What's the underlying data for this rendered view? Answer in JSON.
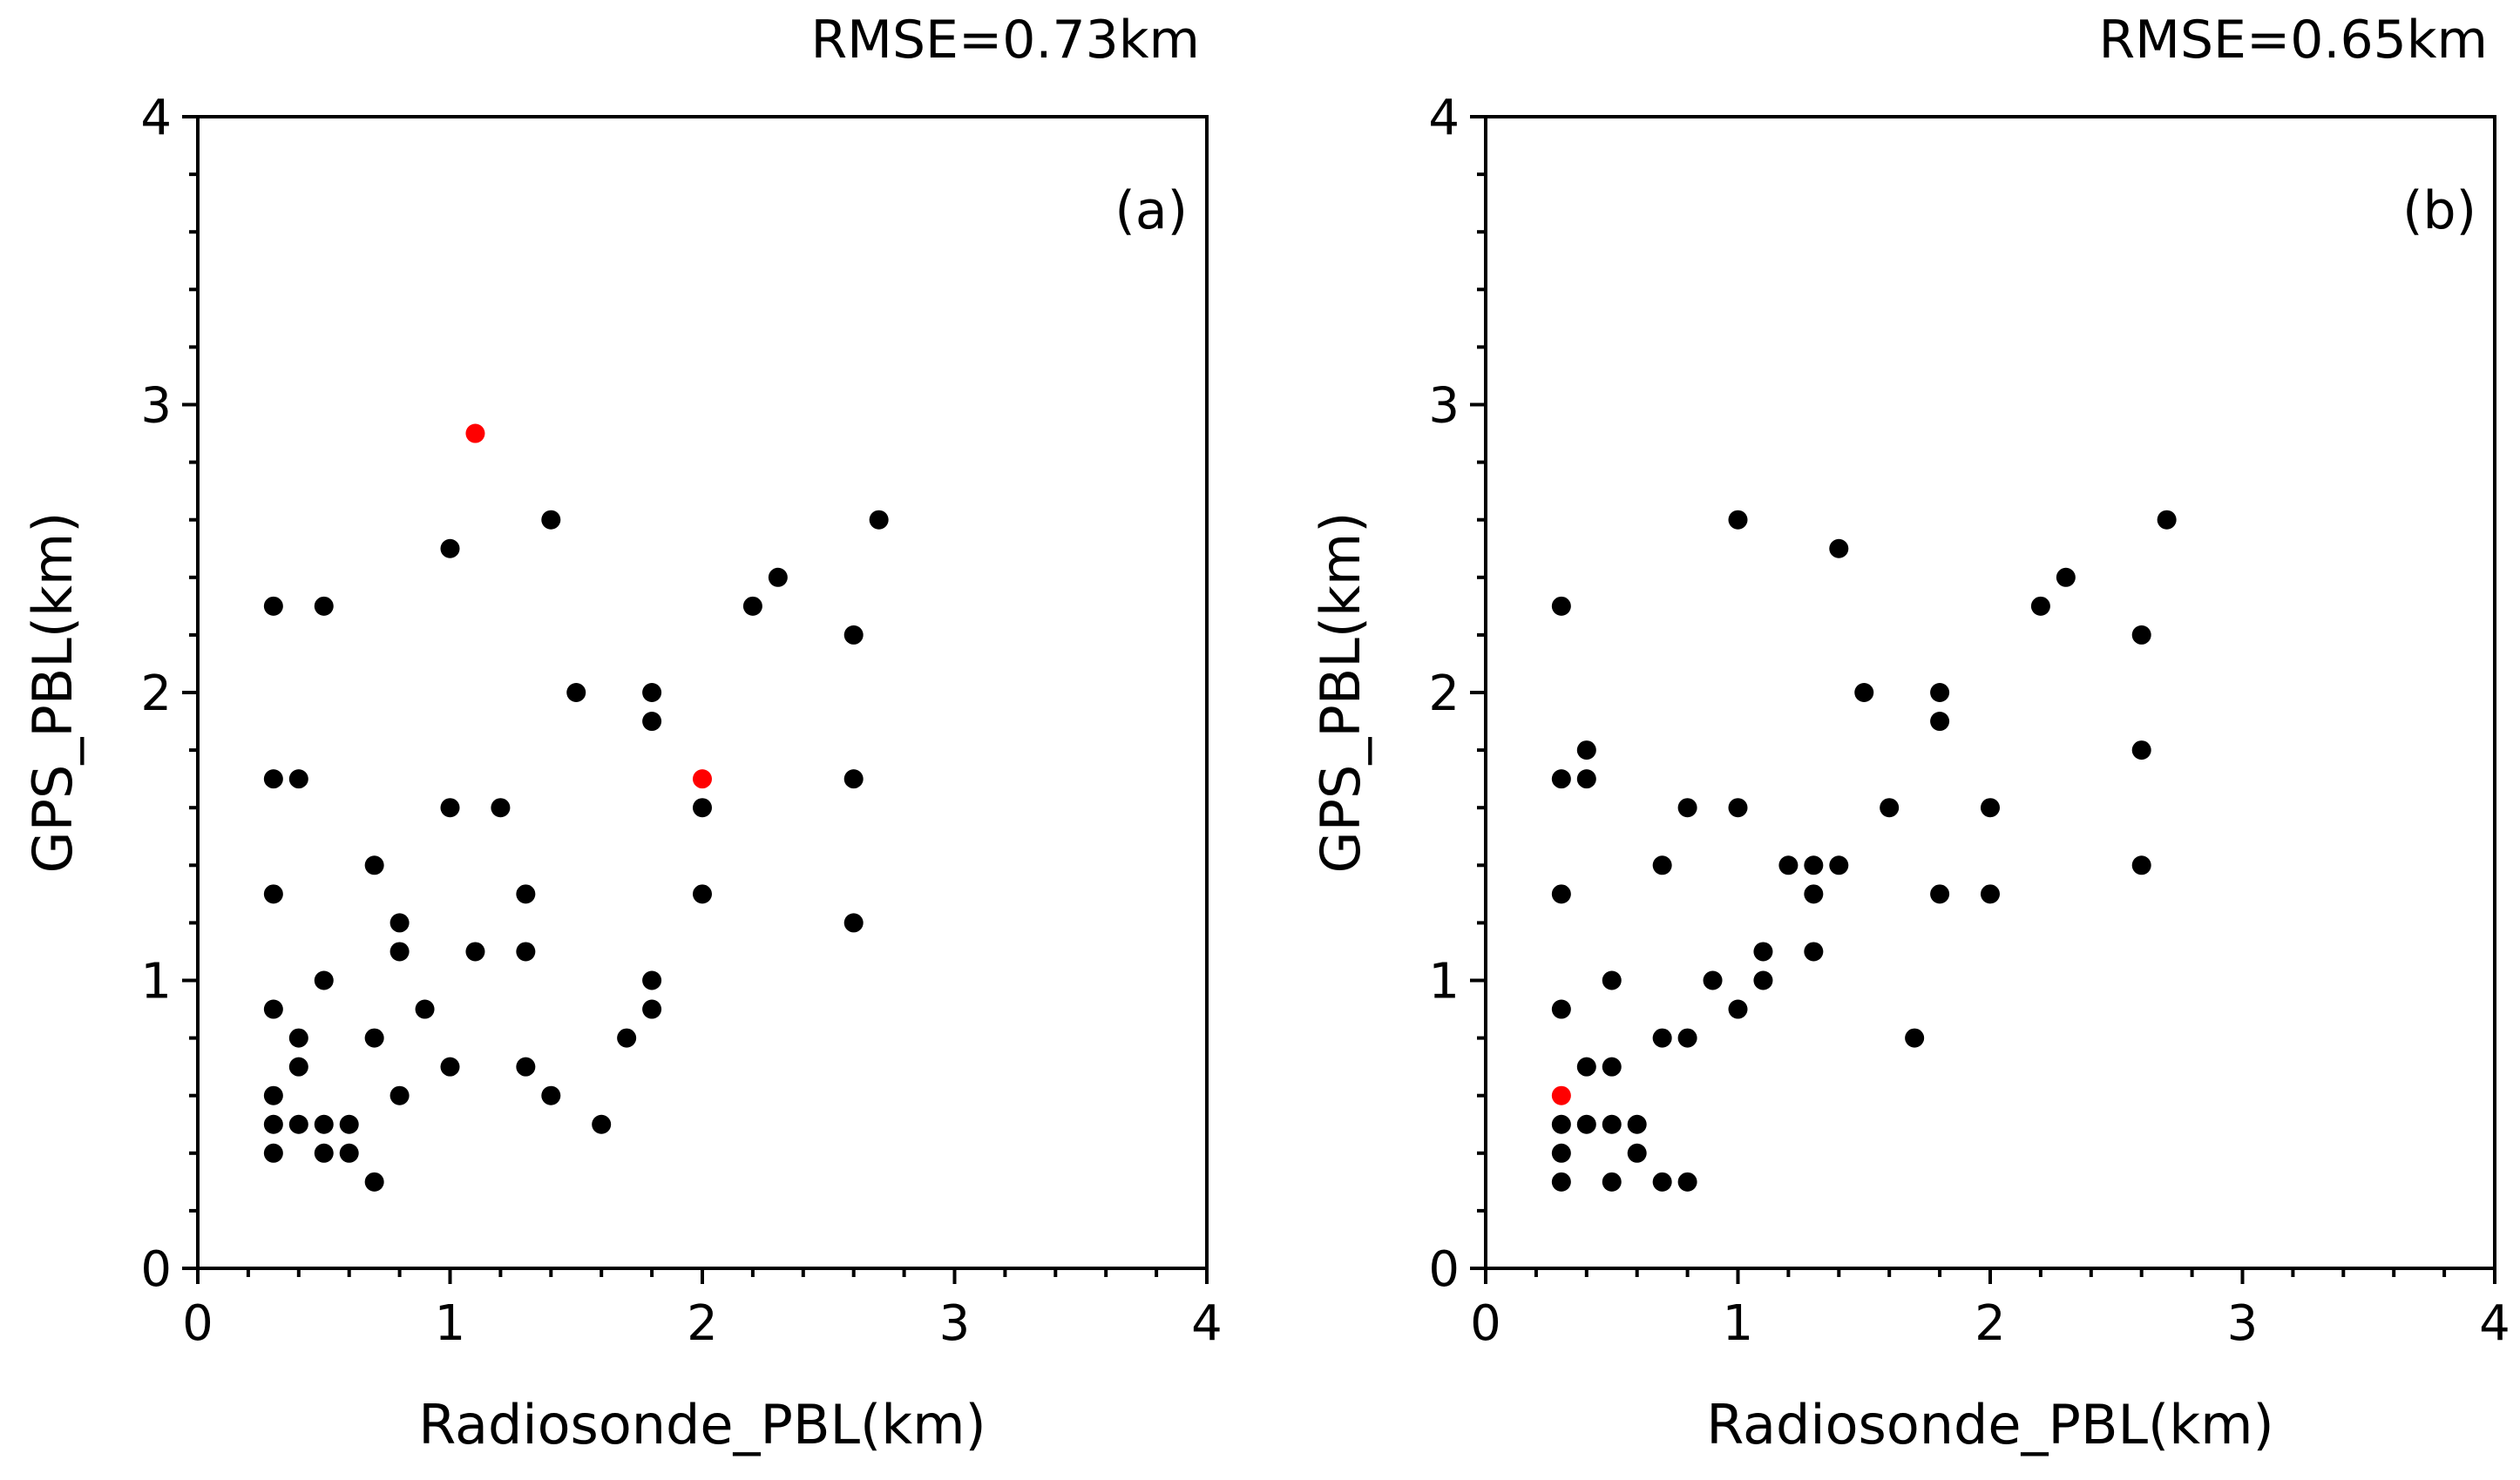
{
  "chart_data": [
    {
      "type": "scatter",
      "panel_label": "(a)",
      "title": "RMSE=0.73km",
      "xlabel": "Radiosonde_PBL(km)",
      "ylabel": "GPS_PBL(km)",
      "xlim": [
        0,
        4
      ],
      "ylim": [
        0,
        4
      ],
      "xticks": [
        "0",
        "1",
        "2",
        "3",
        "4"
      ],
      "yticks": [
        "0",
        "1",
        "2",
        "3",
        "4"
      ],
      "grid": false,
      "points": [
        {
          "x": 0.3,
          "y": 2.3,
          "c": "black"
        },
        {
          "x": 0.5,
          "y": 2.3,
          "c": "black"
        },
        {
          "x": 0.3,
          "y": 1.7,
          "c": "black"
        },
        {
          "x": 0.4,
          "y": 1.7,
          "c": "black"
        },
        {
          "x": 0.3,
          "y": 1.3,
          "c": "black"
        },
        {
          "x": 0.5,
          "y": 1.0,
          "c": "black"
        },
        {
          "x": 0.3,
          "y": 0.9,
          "c": "black"
        },
        {
          "x": 0.4,
          "y": 0.8,
          "c": "black"
        },
        {
          "x": 0.4,
          "y": 0.7,
          "c": "black"
        },
        {
          "x": 0.3,
          "y": 0.6,
          "c": "black"
        },
        {
          "x": 0.3,
          "y": 0.5,
          "c": "black"
        },
        {
          "x": 0.4,
          "y": 0.5,
          "c": "black"
        },
        {
          "x": 0.5,
          "y": 0.5,
          "c": "black"
        },
        {
          "x": 0.6,
          "y": 0.5,
          "c": "black"
        },
        {
          "x": 0.3,
          "y": 0.4,
          "c": "black"
        },
        {
          "x": 0.5,
          "y": 0.4,
          "c": "black"
        },
        {
          "x": 0.6,
          "y": 0.4,
          "c": "black"
        },
        {
          "x": 0.7,
          "y": 0.3,
          "c": "black"
        },
        {
          "x": 0.7,
          "y": 1.4,
          "c": "black"
        },
        {
          "x": 0.8,
          "y": 1.2,
          "c": "black"
        },
        {
          "x": 0.8,
          "y": 1.1,
          "c": "black"
        },
        {
          "x": 0.9,
          "y": 0.9,
          "c": "black"
        },
        {
          "x": 0.7,
          "y": 0.8,
          "c": "black"
        },
        {
          "x": 0.8,
          "y": 0.6,
          "c": "black"
        },
        {
          "x": 1.0,
          "y": 0.7,
          "c": "black"
        },
        {
          "x": 1.0,
          "y": 2.5,
          "c": "black"
        },
        {
          "x": 1.1,
          "y": 2.9,
          "c": "red"
        },
        {
          "x": 1.0,
          "y": 1.6,
          "c": "black"
        },
        {
          "x": 1.2,
          "y": 1.6,
          "c": "black"
        },
        {
          "x": 1.1,
          "y": 1.1,
          "c": "black"
        },
        {
          "x": 1.3,
          "y": 1.3,
          "c": "black"
        },
        {
          "x": 1.3,
          "y": 1.1,
          "c": "black"
        },
        {
          "x": 1.3,
          "y": 0.7,
          "c": "black"
        },
        {
          "x": 1.4,
          "y": 0.6,
          "c": "black"
        },
        {
          "x": 1.4,
          "y": 2.6,
          "c": "black"
        },
        {
          "x": 1.5,
          "y": 2.0,
          "c": "black"
        },
        {
          "x": 1.6,
          "y": 0.5,
          "c": "black"
        },
        {
          "x": 1.7,
          "y": 0.8,
          "c": "black"
        },
        {
          "x": 1.8,
          "y": 2.0,
          "c": "black"
        },
        {
          "x": 1.8,
          "y": 1.9,
          "c": "black"
        },
        {
          "x": 1.8,
          "y": 1.0,
          "c": "black"
        },
        {
          "x": 1.8,
          "y": 0.9,
          "c": "black"
        },
        {
          "x": 2.0,
          "y": 1.7,
          "c": "red"
        },
        {
          "x": 2.0,
          "y": 1.6,
          "c": "black"
        },
        {
          "x": 2.0,
          "y": 1.3,
          "c": "black"
        },
        {
          "x": 2.2,
          "y": 2.3,
          "c": "black"
        },
        {
          "x": 2.3,
          "y": 2.4,
          "c": "black"
        },
        {
          "x": 2.6,
          "y": 2.2,
          "c": "black"
        },
        {
          "x": 2.7,
          "y": 2.6,
          "c": "black"
        },
        {
          "x": 2.6,
          "y": 1.7,
          "c": "black"
        },
        {
          "x": 2.6,
          "y": 1.2,
          "c": "black"
        }
      ]
    },
    {
      "type": "scatter",
      "panel_label": "(b)",
      "title": "RMSE=0.65km",
      "xlabel": "Radiosonde_PBL(km)",
      "ylabel": "GPS_PBL(km)",
      "xlim": [
        0,
        4
      ],
      "ylim": [
        0,
        4
      ],
      "xticks": [
        "0",
        "1",
        "2",
        "3",
        "4"
      ],
      "yticks": [
        "0",
        "1",
        "2",
        "3",
        "4"
      ],
      "grid": false,
      "points": [
        {
          "x": 0.3,
          "y": 2.3,
          "c": "black"
        },
        {
          "x": 0.3,
          "y": 1.7,
          "c": "black"
        },
        {
          "x": 0.4,
          "y": 1.8,
          "c": "black"
        },
        {
          "x": 0.4,
          "y": 1.7,
          "c": "black"
        },
        {
          "x": 0.3,
          "y": 1.3,
          "c": "black"
        },
        {
          "x": 0.3,
          "y": 0.9,
          "c": "black"
        },
        {
          "x": 0.5,
          "y": 1.0,
          "c": "black"
        },
        {
          "x": 0.4,
          "y": 0.7,
          "c": "black"
        },
        {
          "x": 0.5,
          "y": 0.7,
          "c": "black"
        },
        {
          "x": 0.3,
          "y": 0.6,
          "c": "red"
        },
        {
          "x": 0.3,
          "y": 0.5,
          "c": "black"
        },
        {
          "x": 0.4,
          "y": 0.5,
          "c": "black"
        },
        {
          "x": 0.5,
          "y": 0.5,
          "c": "black"
        },
        {
          "x": 0.6,
          "y": 0.5,
          "c": "black"
        },
        {
          "x": 0.3,
          "y": 0.4,
          "c": "black"
        },
        {
          "x": 0.6,
          "y": 0.4,
          "c": "black"
        },
        {
          "x": 0.3,
          "y": 0.3,
          "c": "black"
        },
        {
          "x": 0.5,
          "y": 0.3,
          "c": "black"
        },
        {
          "x": 0.7,
          "y": 0.3,
          "c": "black"
        },
        {
          "x": 0.8,
          "y": 0.3,
          "c": "black"
        },
        {
          "x": 0.7,
          "y": 0.8,
          "c": "black"
        },
        {
          "x": 0.8,
          "y": 0.8,
          "c": "black"
        },
        {
          "x": 0.7,
          "y": 1.4,
          "c": "black"
        },
        {
          "x": 0.8,
          "y": 1.6,
          "c": "black"
        },
        {
          "x": 0.9,
          "y": 1.0,
          "c": "black"
        },
        {
          "x": 1.0,
          "y": 0.9,
          "c": "black"
        },
        {
          "x": 1.0,
          "y": 2.6,
          "c": "black"
        },
        {
          "x": 1.0,
          "y": 1.6,
          "c": "black"
        },
        {
          "x": 1.1,
          "y": 1.1,
          "c": "black"
        },
        {
          "x": 1.1,
          "y": 1.0,
          "c": "black"
        },
        {
          "x": 1.2,
          "y": 1.4,
          "c": "black"
        },
        {
          "x": 1.3,
          "y": 1.4,
          "c": "black"
        },
        {
          "x": 1.4,
          "y": 1.4,
          "c": "black"
        },
        {
          "x": 1.3,
          "y": 1.3,
          "c": "black"
        },
        {
          "x": 1.3,
          "y": 1.1,
          "c": "black"
        },
        {
          "x": 1.4,
          "y": 2.5,
          "c": "black"
        },
        {
          "x": 1.5,
          "y": 2.0,
          "c": "black"
        },
        {
          "x": 1.6,
          "y": 1.6,
          "c": "black"
        },
        {
          "x": 1.7,
          "y": 0.8,
          "c": "black"
        },
        {
          "x": 1.8,
          "y": 2.0,
          "c": "black"
        },
        {
          "x": 1.8,
          "y": 1.9,
          "c": "black"
        },
        {
          "x": 1.8,
          "y": 1.3,
          "c": "black"
        },
        {
          "x": 2.0,
          "y": 1.6,
          "c": "black"
        },
        {
          "x": 2.0,
          "y": 1.3,
          "c": "black"
        },
        {
          "x": 2.2,
          "y": 2.3,
          "c": "black"
        },
        {
          "x": 2.3,
          "y": 2.4,
          "c": "black"
        },
        {
          "x": 2.6,
          "y": 2.2,
          "c": "black"
        },
        {
          "x": 2.6,
          "y": 1.8,
          "c": "black"
        },
        {
          "x": 2.6,
          "y": 1.4,
          "c": "black"
        },
        {
          "x": 2.7,
          "y": 2.6,
          "c": "black"
        }
      ]
    }
  ],
  "colors": {
    "black": "#000000",
    "red": "#ff0000",
    "axis": "#000000"
  }
}
